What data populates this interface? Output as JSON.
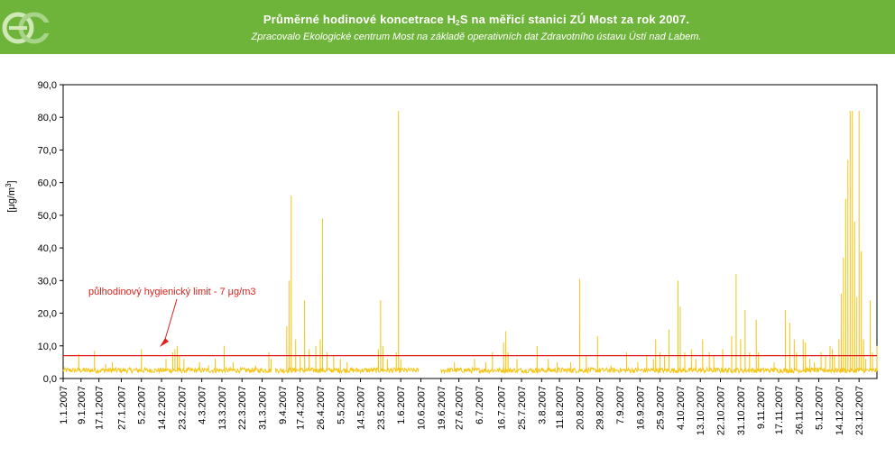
{
  "header": {
    "title_before": "Průměrné hodinové koncetrace H",
    "title_sub": "2",
    "title_after": "S na měřicí stanici ZÚ Most za rok 2007.",
    "subtitle": "Zpracovalo Ekologické centrum Most na základě operativních dat Zdravotního ústavu Ústí nad Labem.",
    "logo_icon": "ec-logo-icon"
  },
  "colors": {
    "banner": "#6fb43a",
    "series": "#f5c518",
    "limit": "#e0201b"
  },
  "chart_data": {
    "type": "line",
    "ylabel_base": "[μg/m",
    "ylabel_sup": "3",
    "ylabel_end": "]",
    "ylim": [
      0,
      90
    ],
    "yticks": [
      "0,0",
      "10,0",
      "20,0",
      "30,0",
      "40,0",
      "50,0",
      "60,0",
      "70,0",
      "80,0",
      "90,0"
    ],
    "x_domain_days": [
      1,
      365
    ],
    "xticks": [
      {
        "label": "1.1.2007",
        "day": 1
      },
      {
        "label": "9.1.2007",
        "day": 9
      },
      {
        "label": "17.1.2007",
        "day": 17
      },
      {
        "label": "27.1.2007",
        "day": 27
      },
      {
        "label": "5.2.2007",
        "day": 36
      },
      {
        "label": "14.2.2007",
        "day": 45
      },
      {
        "label": "23.2.2007",
        "day": 54
      },
      {
        "label": "4.3.2007",
        "day": 63
      },
      {
        "label": "13.3.2007",
        "day": 72
      },
      {
        "label": "22.3.2007",
        "day": 81
      },
      {
        "label": "31.3.2007",
        "day": 90
      },
      {
        "label": "9.4.2007",
        "day": 99
      },
      {
        "label": "17.4.2007",
        "day": 107
      },
      {
        "label": "26.4.2007",
        "day": 116
      },
      {
        "label": "5.5.2007",
        "day": 125
      },
      {
        "label": "14.5.2007",
        "day": 134
      },
      {
        "label": "23.5.2007",
        "day": 143
      },
      {
        "label": "1.6.2007",
        "day": 152
      },
      {
        "label": "10.6.2007",
        "day": 161
      },
      {
        "label": "19.6.2007",
        "day": 170
      },
      {
        "label": "27.6.2007",
        "day": 178
      },
      {
        "label": "6.7.2007",
        "day": 187
      },
      {
        "label": "16.7.2007",
        "day": 197
      },
      {
        "label": "25.7.2007",
        "day": 206
      },
      {
        "label": "3.8.2007",
        "day": 215
      },
      {
        "label": "11.8.2007",
        "day": 223
      },
      {
        "label": "20.8.2007",
        "day": 232
      },
      {
        "label": "29.8.2007",
        "day": 241
      },
      {
        "label": "7.9.2007",
        "day": 250
      },
      {
        "label": "16.9.2007",
        "day": 259
      },
      {
        "label": "25.9.2007",
        "day": 268
      },
      {
        "label": "4.10.2007",
        "day": 277
      },
      {
        "label": "13.10.2007",
        "day": 286
      },
      {
        "label": "22.10.2007",
        "day": 295
      },
      {
        "label": "31.10.2007",
        "day": 304
      },
      {
        "label": "9.11.2007",
        "day": 313
      },
      {
        "label": "17.11.2007",
        "day": 321
      },
      {
        "label": "26.11.2007",
        "day": 330
      },
      {
        "label": "5.12.2007",
        "day": 339
      },
      {
        "label": "14.12.2007",
        "day": 348
      },
      {
        "label": "23.12.2007",
        "day": 357
      }
    ],
    "limit": {
      "value": 7,
      "label": "půlhodinový hygienický limit - 7 μg/m3"
    },
    "series": [
      {
        "color": "#f5c518",
        "base_segments": [
          [
            1,
            94,
            2.5
          ],
          [
            96,
            160,
            2.5
          ],
          [
            170,
            365,
            2.5
          ]
        ],
        "peaks": [
          [
            8,
            7.5
          ],
          [
            15,
            8.5
          ],
          [
            20,
            4.5
          ],
          [
            23,
            5
          ],
          [
            36,
            9
          ],
          [
            47,
            6
          ],
          [
            50,
            8
          ],
          [
            51,
            9
          ],
          [
            52,
            10
          ],
          [
            53,
            7
          ],
          [
            55,
            6
          ],
          [
            62,
            5
          ],
          [
            66,
            4
          ],
          [
            69,
            6
          ],
          [
            73,
            10
          ],
          [
            77,
            5
          ],
          [
            87,
            4
          ],
          [
            93,
            8
          ],
          [
            94,
            6
          ],
          [
            101,
            16
          ],
          [
            102,
            30
          ],
          [
            103,
            56
          ],
          [
            105,
            12
          ],
          [
            107,
            7
          ],
          [
            109,
            24
          ],
          [
            111,
            9
          ],
          [
            114,
            10
          ],
          [
            116,
            12
          ],
          [
            117,
            49
          ],
          [
            119,
            8
          ],
          [
            122,
            7
          ],
          [
            125,
            6
          ],
          [
            128,
            5
          ],
          [
            142,
            9
          ],
          [
            143,
            24
          ],
          [
            144,
            10
          ],
          [
            146,
            6
          ],
          [
            150,
            8
          ],
          [
            151,
            82
          ],
          [
            152,
            6
          ],
          [
            176,
            5
          ],
          [
            185,
            6
          ],
          [
            190,
            5
          ],
          [
            193,
            8
          ],
          [
            198,
            11
          ],
          [
            199,
            14.5
          ],
          [
            200,
            8
          ],
          [
            204,
            6
          ],
          [
            213,
            10
          ],
          [
            218,
            6
          ],
          [
            222,
            5
          ],
          [
            228,
            5
          ],
          [
            232,
            30.5
          ],
          [
            235,
            7
          ],
          [
            240,
            13
          ],
          [
            246,
            4
          ],
          [
            253,
            8
          ],
          [
            258,
            5
          ],
          [
            262,
            7
          ],
          [
            265,
            6
          ],
          [
            266,
            12
          ],
          [
            268,
            8
          ],
          [
            270,
            7
          ],
          [
            272,
            15
          ],
          [
            276,
            30
          ],
          [
            277,
            22
          ],
          [
            279,
            8
          ],
          [
            282,
            9
          ],
          [
            284,
            6
          ],
          [
            287,
            12
          ],
          [
            290,
            8
          ],
          [
            292,
            7
          ],
          [
            296,
            9
          ],
          [
            300,
            13
          ],
          [
            302,
            32
          ],
          [
            304,
            12
          ],
          [
            306,
            21
          ],
          [
            308,
            8
          ],
          [
            311,
            18
          ],
          [
            312,
            8
          ],
          [
            319,
            5
          ],
          [
            324,
            21
          ],
          [
            326,
            17
          ],
          [
            328,
            12
          ],
          [
            329,
            8
          ],
          [
            332,
            12
          ],
          [
            333,
            11
          ],
          [
            335,
            6
          ],
          [
            337,
            5
          ],
          [
            340,
            8
          ],
          [
            342,
            7
          ],
          [
            344,
            10
          ],
          [
            345,
            9
          ],
          [
            346,
            7
          ],
          [
            348,
            12
          ],
          [
            349,
            26
          ],
          [
            350,
            37
          ],
          [
            351,
            55
          ],
          [
            352,
            67
          ],
          [
            353,
            82
          ],
          [
            354,
            82
          ],
          [
            355,
            48
          ],
          [
            356,
            25
          ],
          [
            357,
            82
          ],
          [
            358,
            39
          ],
          [
            359,
            12
          ],
          [
            360,
            6
          ],
          [
            362,
            24
          ],
          [
            363,
            8
          ],
          [
            365,
            10
          ]
        ]
      }
    ]
  }
}
